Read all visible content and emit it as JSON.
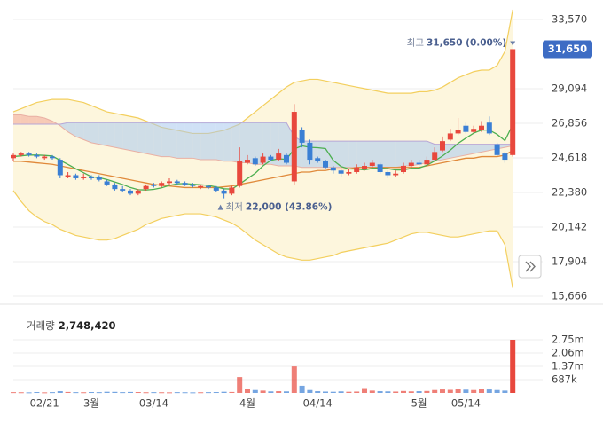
{
  "chart_data": {
    "type": "candlestick",
    "categories": [
      null,
      null,
      null,
      null,
      "02/21",
      null,
      null,
      null,
      null,
      null,
      "3월",
      null,
      null,
      null,
      null,
      null,
      null,
      null,
      "03/14",
      null,
      null,
      null,
      null,
      null,
      null,
      null,
      null,
      null,
      null,
      null,
      "4월",
      null,
      null,
      null,
      null,
      null,
      null,
      null,
      null,
      "04/14",
      null,
      null,
      null,
      null,
      null,
      null,
      null,
      null,
      null,
      null,
      null,
      null,
      "5월",
      null,
      null,
      null,
      null,
      null,
      "05/14",
      null,
      null,
      null,
      null,
      null,
      null
    ],
    "open": [
      24600,
      24800,
      24900,
      24800,
      24600,
      24700,
      24500,
      23400,
      23500,
      23300,
      23400,
      23400,
      23100,
      22900,
      22600,
      22500,
      22300,
      22600,
      22900,
      22800,
      23000,
      23100,
      23000,
      22900,
      22700,
      22800,
      22700,
      22500,
      22300,
      22800,
      24300,
      24600,
      24300,
      24700,
      24500,
      24800,
      23100,
      26400,
      25600,
      24600,
      24400,
      24000,
      23800,
      23600,
      23700,
      23900,
      24100,
      24200,
      23700,
      23500,
      23700,
      24100,
      24300,
      24200,
      24500,
      25100,
      25800,
      26200,
      26700,
      26300,
      26400,
      26900,
      25500,
      24900,
      24800
    ],
    "high": [
      24900,
      25000,
      25000,
      24900,
      24800,
      24800,
      24600,
      23700,
      23600,
      23600,
      23500,
      23500,
      23200,
      23000,
      22800,
      22600,
      22600,
      22900,
      23000,
      23100,
      23300,
      23200,
      23100,
      23000,
      22900,
      22900,
      22800,
      22600,
      22800,
      25300,
      24800,
      24700,
      24900,
      24800,
      25200,
      24900,
      28100,
      26600,
      25800,
      24700,
      24500,
      24100,
      23900,
      23900,
      24200,
      24300,
      24500,
      24300,
      23800,
      23800,
      24300,
      24500,
      24500,
      24700,
      25300,
      26000,
      26500,
      27200,
      26900,
      26700,
      27000,
      27300,
      25600,
      25000,
      31650
    ],
    "low": [
      24400,
      24700,
      24700,
      24600,
      24500,
      24500,
      23300,
      23300,
      23200,
      23200,
      23200,
      23100,
      22800,
      22500,
      22400,
      22200,
      22200,
      22500,
      22700,
      22700,
      22900,
      22900,
      22800,
      22700,
      22600,
      22600,
      22400,
      22000,
      22200,
      22700,
      24200,
      24100,
      24200,
      24400,
      24400,
      24200,
      22900,
      25300,
      24200,
      24300,
      23900,
      23600,
      23400,
      23500,
      23600,
      23800,
      24000,
      23600,
      23300,
      23400,
      23600,
      24000,
      24100,
      24100,
      24400,
      25000,
      25700,
      26100,
      26200,
      26200,
      26300,
      26100,
      24700,
      24300,
      24700
    ],
    "close": [
      24800,
      24900,
      24800,
      24700,
      24700,
      24600,
      23500,
      23500,
      23300,
      23400,
      23300,
      23200,
      22900,
      22600,
      22500,
      22300,
      22500,
      22800,
      22800,
      23000,
      23100,
      23000,
      22900,
      22800,
      22800,
      22700,
      22500,
      22300,
      22700,
      24400,
      24500,
      24200,
      24700,
      24500,
      24900,
      24300,
      27600,
      25600,
      24500,
      24400,
      24000,
      23800,
      23600,
      23700,
      24000,
      24100,
      24300,
      23700,
      23500,
      23600,
      24100,
      24300,
      24200,
      24500,
      25000,
      25700,
      26200,
      26400,
      26300,
      26500,
      26700,
      26200,
      24800,
      24500,
      31650
    ],
    "volume": [
      40000,
      35000,
      30000,
      45000,
      30000,
      40000,
      90000,
      50000,
      40000,
      35000,
      45000,
      40000,
      60000,
      55000,
      40000,
      50000,
      45000,
      35000,
      40000,
      35000,
      30000,
      40000,
      35000,
      30000,
      35000,
      40000,
      45000,
      60000,
      50000,
      820000,
      200000,
      150000,
      120000,
      80000,
      90000,
      80000,
      1370000,
      370000,
      150000,
      90000,
      70000,
      60000,
      80000,
      60000,
      70000,
      250000,
      120000,
      90000,
      80000,
      70000,
      100000,
      80000,
      90000,
      100000,
      150000,
      180000,
      160000,
      200000,
      170000,
      150000,
      190000,
      180000,
      150000,
      120000,
      2748420
    ],
    "up_color": "#e8483d",
    "down_color": "#3a7fd4",
    "ylim": [
      15666,
      33570
    ],
    "yticks": [
      {
        "value": 15666,
        "label": "15,666"
      },
      {
        "value": 17904,
        "label": "17,904"
      },
      {
        "value": 20142,
        "label": "20,142"
      },
      {
        "value": 22380,
        "label": "22,380"
      },
      {
        "value": 24618,
        "label": "24,618"
      },
      {
        "value": 26856,
        "label": "26,856"
      },
      {
        "value": 29094,
        "label": "29,094"
      },
      {
        "value": 33570,
        "label": "33,570"
      }
    ],
    "grid": true,
    "bollinger_upper": [
      27600,
      27800,
      28000,
      28200,
      28300,
      28400,
      28400,
      28400,
      28300,
      28200,
      28000,
      27800,
      27600,
      27500,
      27400,
      27300,
      27200,
      27000,
      26800,
      26600,
      26500,
      26400,
      26300,
      26200,
      26200,
      26200,
      26300,
      26400,
      26600,
      26800,
      27200,
      27600,
      28000,
      28400,
      28800,
      29200,
      29500,
      29600,
      29700,
      29700,
      29600,
      29500,
      29400,
      29300,
      29200,
      29100,
      29000,
      28900,
      28800,
      28800,
      28800,
      28800,
      28900,
      28900,
      29000,
      29200,
      29500,
      29800,
      30000,
      30200,
      30300,
      30300,
      30600,
      31500,
      34200
    ],
    "bollinger_lower": [
      22500,
      21800,
      21200,
      20800,
      20500,
      20300,
      20000,
      19800,
      19600,
      19500,
      19400,
      19300,
      19300,
      19400,
      19600,
      19800,
      20000,
      20300,
      20500,
      20700,
      20800,
      20900,
      21000,
      21000,
      21000,
      20900,
      20800,
      20600,
      20400,
      20100,
      19700,
      19300,
      19000,
      18700,
      18400,
      18200,
      18100,
      18000,
      18000,
      18100,
      18200,
      18300,
      18500,
      18600,
      18700,
      18800,
      18900,
      19000,
      19100,
      19300,
      19500,
      19700,
      19800,
      19800,
      19700,
      19600,
      19500,
      19500,
      19600,
      19700,
      19800,
      19900,
      19900,
      19000,
      16200
    ],
    "band_color": "#f3cf5e",
    "band_fill": "#fdf6dd",
    "ma_lines": [
      {
        "color": "#e0893a",
        "values": [
          24400,
          24400,
          24350,
          24300,
          24250,
          24200,
          24100,
          24000,
          23900,
          23800,
          23700,
          23600,
          23500,
          23400,
          23300,
          23200,
          23100,
          23000,
          22900,
          22850,
          22800,
          22750,
          22700,
          22700,
          22700,
          22700,
          22700,
          22750,
          22800,
          22900,
          23000,
          23100,
          23200,
          23300,
          23400,
          23500,
          23600,
          23700,
          23700,
          23800,
          23800,
          23900,
          23900,
          23900,
          24000,
          24000,
          24000,
          24000,
          24000,
          24000,
          24000,
          24000,
          24000,
          24100,
          24200,
          24300,
          24400,
          24500,
          24600,
          24600,
          24700,
          24700,
          24700,
          24800,
          25100
        ]
      },
      {
        "color": "#4caf50",
        "values": [
          24700,
          24750,
          24800,
          24800,
          24780,
          24740,
          24460,
          24200,
          23920,
          23660,
          23400,
          23340,
          23220,
          23060,
          22900,
          22700,
          22560,
          22540,
          22580,
          22680,
          22840,
          22940,
          22960,
          22920,
          22880,
          22840,
          22740,
          22620,
          22600,
          22920,
          23280,
          23620,
          24100,
          24460,
          24560,
          24520,
          25200,
          25400,
          25300,
          25280,
          25220,
          24460,
          24060,
          23900,
          23900,
          23840,
          23940,
          23960,
          23920,
          23840,
          23840,
          23940,
          23960,
          24140,
          24420,
          24740,
          25120,
          25560,
          25900,
          26220,
          26420,
          26420,
          26140,
          25740,
          26770
        ]
      }
    ],
    "cloud": {
      "span_a": [
        27400,
        27400,
        27300,
        27300,
        27200,
        27000,
        26700,
        26300,
        26000,
        25800,
        25600,
        25500,
        25400,
        25300,
        25200,
        25100,
        25000,
        24900,
        24800,
        24700,
        24700,
        24600,
        24600,
        24600,
        24500,
        24500,
        24500,
        24400,
        24400,
        24300,
        24300,
        24200,
        24200,
        24200,
        24100,
        24100,
        24100,
        24000,
        24000,
        24000,
        24000,
        24000,
        24000,
        24000,
        24000,
        24000,
        24000,
        24000,
        24000,
        24000,
        24100,
        24100,
        24200,
        24300,
        24400,
        24500,
        24600,
        24700,
        24800,
        24900,
        25000,
        25100,
        25200,
        25300,
        25400
      ],
      "span_b": [
        26800,
        26800,
        26800,
        26800,
        26800,
        26800,
        26800,
        26900,
        26900,
        26900,
        26900,
        26900,
        26900,
        26900,
        26900,
        26900,
        26900,
        26900,
        26900,
        26900,
        26900,
        26900,
        26900,
        26900,
        26900,
        26900,
        26900,
        26900,
        26900,
        26900,
        26900,
        26900,
        26900,
        26900,
        26900,
        26900,
        26000,
        25700,
        25700,
        25700,
        25700,
        25700,
        25700,
        25700,
        25700,
        25700,
        25700,
        25700,
        25700,
        25700,
        25700,
        25700,
        25700,
        25700,
        25500,
        25500,
        25500,
        25500,
        25500,
        25500,
        25500,
        25500,
        25500,
        25500,
        25500
      ],
      "up_color": "#f2a596",
      "down_color": "#a9c8ef"
    },
    "high_marker": {
      "label": "최고",
      "value": 31650,
      "value_label": "31,650 (0.00%)"
    },
    "low_marker": {
      "label": "최저",
      "value": 22000,
      "value_label": "22,000 (43.86%)"
    },
    "last_price": {
      "value": 31650,
      "label": "31,650",
      "color": "#3d6cc4"
    },
    "volume_ylim": [
      0,
      2748420
    ],
    "volume_yticks": [
      {
        "value": 687105,
        "label": "687k"
      },
      {
        "value": 1374210,
        "label": "1.37m"
      },
      {
        "value": 2061315,
        "label": "2.06m"
      },
      {
        "value": 2748420,
        "label": "2.75m"
      }
    ],
    "volume_readout": {
      "label": "거래량",
      "value": 2748420,
      "value_label": "2,748,420"
    }
  }
}
